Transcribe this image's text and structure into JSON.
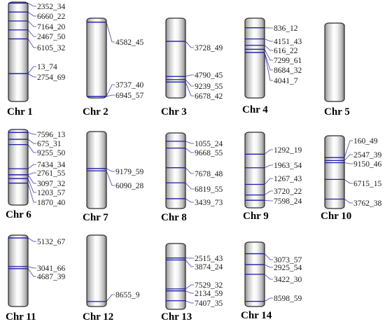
{
  "chromosomes": [
    {
      "name": "Chr 1",
      "markers": [
        {
          "gene": "2352_34",
          "pos": 0.01
        },
        {
          "gene": "6660_22",
          "pos": 0.1
        },
        {
          "gene": "7164_20",
          "pos": 0.19
        },
        {
          "gene": "2467_50",
          "pos": 0.28
        },
        {
          "gene": "6105_32",
          "pos": 0.37
        },
        {
          "gene": "13_74",
          "pos": 0.72
        },
        {
          "gene": "2754_69",
          "pos": 0.72
        }
      ]
    },
    {
      "name": "Chr 2",
      "markers": [
        {
          "gene": "4582_45",
          "pos": 0.05
        },
        {
          "gene": "3737_40",
          "pos": 0.98
        },
        {
          "gene": "6945_57",
          "pos": 0.98
        }
      ]
    },
    {
      "name": "Chr 3",
      "markers": [
        {
          "gene": "3728_49",
          "pos": 0.29
        },
        {
          "gene": "4790_45",
          "pos": 0.73
        },
        {
          "gene": "9239_55",
          "pos": 0.77
        },
        {
          "gene": "6678_42",
          "pos": 0.8
        }
      ]
    },
    {
      "name": "Chr 4",
      "markers": [
        {
          "gene": "836_12",
          "pos": 0.12
        },
        {
          "gene": "4151_43",
          "pos": 0.26
        },
        {
          "gene": "616_22",
          "pos": 0.34
        },
        {
          "gene": "7299_61",
          "pos": 0.39
        },
        {
          "gene": "8684_32",
          "pos": 0.43
        },
        {
          "gene": "4041_7",
          "pos": 0.43
        }
      ]
    },
    {
      "name": "Chr 5",
      "markers": []
    },
    {
      "name": "Chr 6",
      "markers": [
        {
          "gene": "7596_13",
          "pos": 0.04
        },
        {
          "gene": "675_31",
          "pos": 0.13
        },
        {
          "gene": "9255_50",
          "pos": 0.2
        },
        {
          "gene": "7434_34",
          "pos": 0.52
        },
        {
          "gene": "2761_55",
          "pos": 0.6
        },
        {
          "gene": "3097_32",
          "pos": 0.6
        },
        {
          "gene": "1203_57",
          "pos": 0.65
        },
        {
          "gene": "1870_40",
          "pos": 0.71
        }
      ]
    },
    {
      "name": "Chr 7",
      "markers": [
        {
          "gene": "9179_59",
          "pos": 0.48
        },
        {
          "gene": "6090_28",
          "pos": 0.51
        }
      ]
    },
    {
      "name": "Chr 8",
      "markers": [
        {
          "gene": "1055_24",
          "pos": 0.11
        },
        {
          "gene": "9668_55",
          "pos": 0.2
        },
        {
          "gene": "7678_48",
          "pos": 0.46
        },
        {
          "gene": "6819_55",
          "pos": 0.66
        },
        {
          "gene": "3439_73",
          "pos": 0.87
        }
      ]
    },
    {
      "name": "Chr 9",
      "markers": [
        {
          "gene": "1292_19",
          "pos": 0.29
        },
        {
          "gene": "1963_54",
          "pos": 0.47
        },
        {
          "gene": "1267_43",
          "pos": 0.69
        },
        {
          "gene": "3720_22",
          "pos": 0.83
        },
        {
          "gene": "7598_24",
          "pos": 0.9
        }
      ]
    },
    {
      "name": "Chr 10",
      "markers": [
        {
          "gene": "160_49",
          "pos": 0.3
        },
        {
          "gene": "2547_39",
          "pos": 0.34
        },
        {
          "gene": "9150_46",
          "pos": 0.37
        },
        {
          "gene": "6715_15",
          "pos": 0.6
        },
        {
          "gene": "3762_38",
          "pos": 0.87
        }
      ]
    },
    {
      "name": "Chr 11",
      "markers": [
        {
          "gene": "5132_67",
          "pos": 0.04
        },
        {
          "gene": "3041_66",
          "pos": 0.44
        },
        {
          "gene": "4687_39",
          "pos": 0.47
        }
      ]
    },
    {
      "name": "Chr 12",
      "markers": [
        {
          "gene": "8655_9",
          "pos": 0.93
        }
      ]
    },
    {
      "name": "Chr 13",
      "markers": [
        {
          "gene": "2515_43",
          "pos": 0.22
        },
        {
          "gene": "3874_24",
          "pos": 0.25
        },
        {
          "gene": "7529_32",
          "pos": 0.69
        },
        {
          "gene": "2134_59",
          "pos": 0.72
        },
        {
          "gene": "7407_35",
          "pos": 0.87
        }
      ]
    },
    {
      "name": "Chr 14",
      "markers": [
        {
          "gene": "3073_57",
          "pos": 0.18
        },
        {
          "gene": "2925_54",
          "pos": 0.35
        },
        {
          "gene": "3422_30",
          "pos": 0.5
        },
        {
          "gene": "8598_59",
          "pos": 0.92
        }
      ]
    }
  ],
  "colors": {
    "marker": "#1c1ca8",
    "leader": "#3b3bb8",
    "chrom_edge": "#2a2a2a",
    "chrom_dark": "#8e8e8e",
    "chrom_light": "#ffffff"
  }
}
